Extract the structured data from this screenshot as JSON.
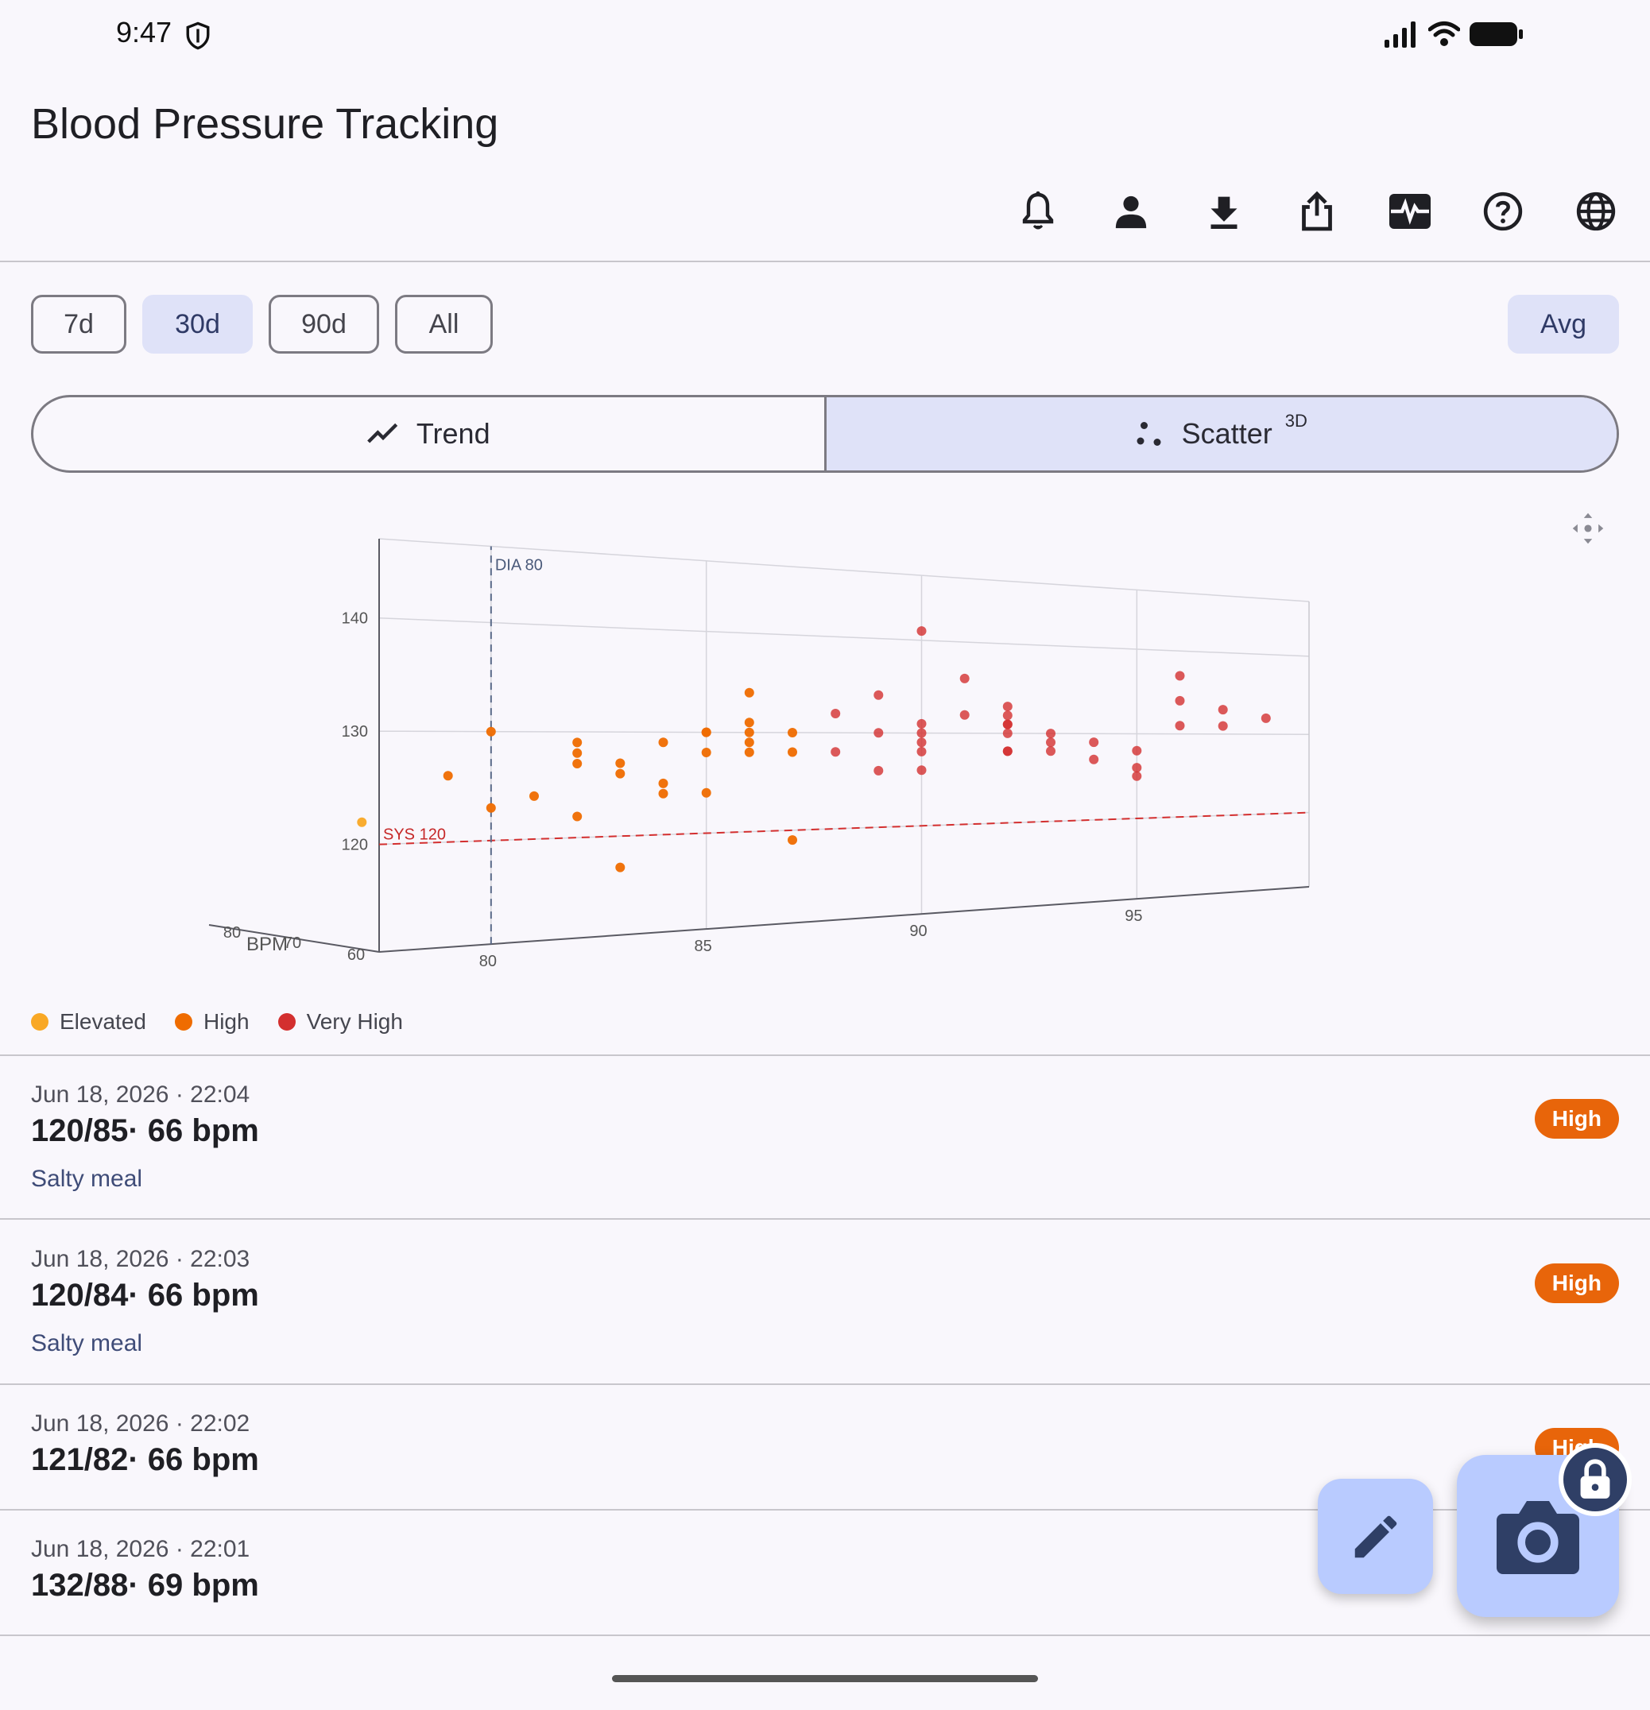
{
  "status_bar": {
    "time": "9:47"
  },
  "app": {
    "title": "Blood Pressure Tracking"
  },
  "toolbar_icons": [
    "bell-icon",
    "person-icon",
    "download-icon",
    "share-icon",
    "monitor-heart-icon",
    "help-icon",
    "globe-icon"
  ],
  "range_chips": [
    "7d",
    "30d",
    "90d",
    "All"
  ],
  "selected_range": "30d",
  "avg_button": "Avg",
  "view_toggle": {
    "trend_label": "Trend",
    "scatter_label": "Scatter",
    "scatter_superscript": "3D",
    "selected": "Scatter"
  },
  "chart_data": {
    "type": "scatter",
    "projection": "3d",
    "x_axis": {
      "label": "",
      "ticks": [
        "80",
        "85",
        "90",
        "95"
      ]
    },
    "y_axis": {
      "label": "",
      "ticks": [
        "120",
        "130",
        "140"
      ]
    },
    "z_axis": {
      "label": "BPM",
      "ticks": [
        "60",
        "70",
        "80"
      ]
    },
    "reference_lines": [
      {
        "label": "SYS 120",
        "axis": "systolic",
        "value": 120,
        "color": "#d32f2f"
      },
      {
        "label": "DIA 80",
        "axis": "diastolic",
        "value": 80,
        "color": "#5b6b8a"
      }
    ],
    "legend": [
      {
        "name": "Elevated",
        "color": "#f9a825"
      },
      {
        "name": "High",
        "color": "#ef6c00"
      },
      {
        "name": "Very High",
        "color": "#d32f2f"
      }
    ],
    "series": [
      {
        "name": "Elevated",
        "points": [
          {
            "dia": 77,
            "sys": 122
          }
        ]
      },
      {
        "name": "High",
        "points": [
          {
            "dia": 79,
            "sys": 126
          },
          {
            "dia": 80,
            "sys": 123
          },
          {
            "dia": 80,
            "sys": 130
          },
          {
            "dia": 81,
            "sys": 124
          },
          {
            "dia": 82,
            "sys": 122
          },
          {
            "dia": 82,
            "sys": 129
          },
          {
            "dia": 82,
            "sys": 128
          },
          {
            "dia": 82,
            "sys": 127
          },
          {
            "dia": 83,
            "sys": 126
          },
          {
            "dia": 83,
            "sys": 127
          },
          {
            "dia": 84,
            "sys": 125
          },
          {
            "dia": 84,
            "sys": 124
          },
          {
            "dia": 84,
            "sys": 129
          },
          {
            "dia": 85,
            "sys": 124
          },
          {
            "dia": 85,
            "sys": 130
          },
          {
            "dia": 85,
            "sys": 130
          },
          {
            "dia": 85,
            "sys": 128
          },
          {
            "dia": 86,
            "sys": 131
          },
          {
            "dia": 86,
            "sys": 129
          },
          {
            "dia": 86,
            "sys": 134
          },
          {
            "dia": 86,
            "sys": 130
          },
          {
            "dia": 86,
            "sys": 128
          },
          {
            "dia": 83,
            "sys": 117
          },
          {
            "dia": 87,
            "sys": 119
          },
          {
            "dia": 87,
            "sys": 130
          },
          {
            "dia": 87,
            "sys": 128
          }
        ]
      },
      {
        "name": "Very High",
        "points": [
          {
            "dia": 88,
            "sys": 132
          },
          {
            "dia": 88,
            "sys": 128
          },
          {
            "dia": 89,
            "sys": 126
          },
          {
            "dia": 89,
            "sys": 134
          },
          {
            "dia": 89,
            "sys": 130
          },
          {
            "dia": 90,
            "sys": 126
          },
          {
            "dia": 90,
            "sys": 130
          },
          {
            "dia": 90,
            "sys": 129
          },
          {
            "dia": 90,
            "sys": 128
          },
          {
            "dia": 90,
            "sys": 131
          },
          {
            "dia": 90,
            "sys": 141
          },
          {
            "dia": 91,
            "sys": 132
          },
          {
            "dia": 91,
            "sys": 136
          },
          {
            "dia": 92,
            "sys": 131
          },
          {
            "dia": 92,
            "sys": 130
          },
          {
            "dia": 92,
            "sys": 128
          },
          {
            "dia": 92,
            "sys": 131
          },
          {
            "dia": 92,
            "sys": 132
          },
          {
            "dia": 92,
            "sys": 128
          },
          {
            "dia": 92,
            "sys": 133
          },
          {
            "dia": 93,
            "sys": 130
          },
          {
            "dia": 93,
            "sys": 128
          },
          {
            "dia": 93,
            "sys": 129
          },
          {
            "dia": 94,
            "sys": 129
          },
          {
            "dia": 94,
            "sys": 127
          },
          {
            "dia": 95,
            "sys": 128
          },
          {
            "dia": 95,
            "sys": 125
          },
          {
            "dia": 95,
            "sys": 126
          },
          {
            "dia": 96,
            "sys": 134
          },
          {
            "dia": 96,
            "sys": 137
          },
          {
            "dia": 96,
            "sys": 131
          },
          {
            "dia": 97,
            "sys": 133
          },
          {
            "dia": 97,
            "sys": 131
          },
          {
            "dia": 98,
            "sys": 132
          }
        ]
      }
    ]
  },
  "readings": [
    {
      "datetime": "Jun 18, 2026 · 22:04",
      "value": "120/85· 66 bpm",
      "note": "Salty meal",
      "badge": "High"
    },
    {
      "datetime": "Jun 18, 2026 · 22:03",
      "value": "120/84· 66 bpm",
      "note": "Salty meal",
      "badge": "High"
    },
    {
      "datetime": "Jun 18, 2026 · 22:02",
      "value": "121/82· 66 bpm",
      "note": "",
      "badge": "High"
    },
    {
      "datetime": "Jun 18, 2026 · 22:01",
      "value": "132/88· 69 bpm",
      "note": "",
      "badge": ""
    }
  ],
  "fab": {
    "edit": "edit-icon",
    "camera": "camera-icon",
    "lock": "lock-icon"
  },
  "colors": {
    "accent": "#dfe2f8",
    "badge_high": "#e8650a",
    "fab": "#b9cbff"
  }
}
